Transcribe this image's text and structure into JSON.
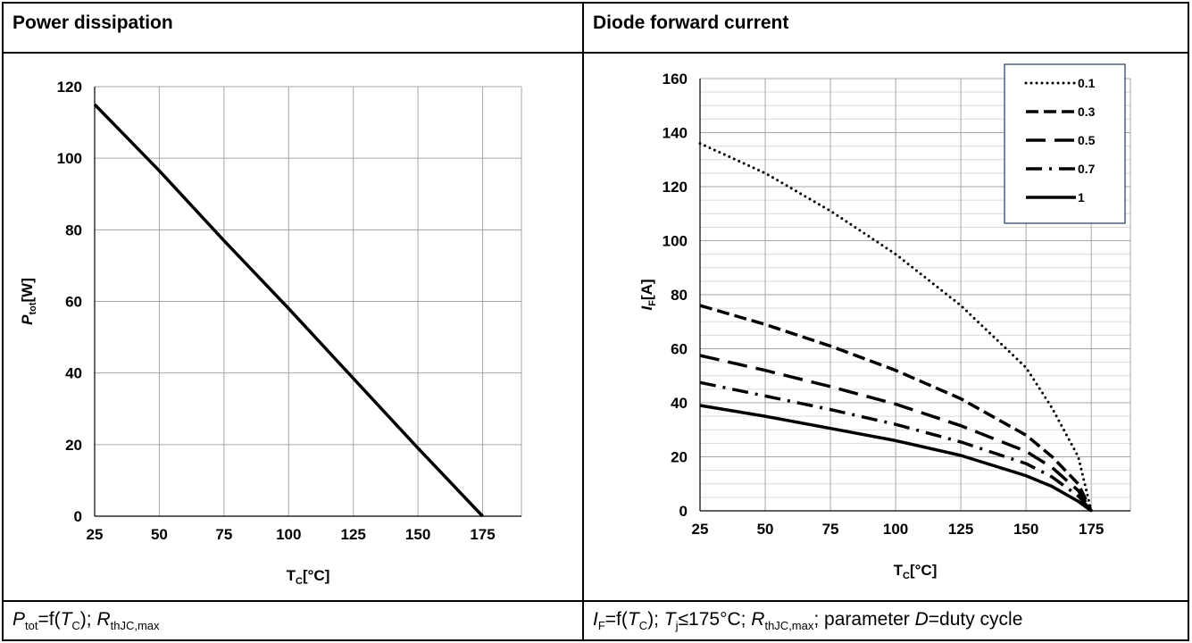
{
  "panels": [
    {
      "title": "Power dissipation",
      "caption": "P_tot=f(T_C); R_thJC,max"
    },
    {
      "title": "Diode forward current",
      "caption": "I_F=f(T_C); T_j≤175°C; R_thJC,max; parameter D=duty cycle"
    }
  ],
  "chart_data": [
    {
      "type": "line",
      "title": "Power dissipation",
      "xlabel": "T_C[°C]",
      "ylabel": "P_tot[W]",
      "xlim": [
        25,
        190
      ],
      "ylim": [
        0,
        120
      ],
      "xticks": [
        25,
        50,
        75,
        100,
        125,
        150,
        175
      ],
      "yticks": [
        0,
        20,
        40,
        60,
        80,
        100,
        120
      ],
      "grid": true,
      "series": [
        {
          "x": [
            25,
            50,
            75,
            100,
            125,
            150,
            175
          ],
          "y": [
            115,
            96.5,
            77,
            58,
            38.5,
            19,
            0
          ]
        }
      ]
    },
    {
      "type": "line",
      "title": "Diode forward current",
      "xlabel": "T_C[°C]",
      "ylabel": "I_F[A]",
      "xlim": [
        25,
        190
      ],
      "ylim": [
        0,
        160
      ],
      "xticks": [
        25,
        50,
        75,
        100,
        125,
        150,
        175
      ],
      "yticks": [
        0,
        20,
        40,
        60,
        80,
        100,
        120,
        140,
        160
      ],
      "grid": true,
      "legend": "top-right",
      "series": [
        {
          "name": "0.1",
          "x": [
            25,
            50,
            75,
            100,
            125,
            150,
            160,
            170,
            175
          ],
          "y": [
            136,
            125,
            111,
            95,
            76,
            53,
            38,
            20,
            0
          ]
        },
        {
          "name": "0.3",
          "x": [
            25,
            50,
            75,
            100,
            125,
            150,
            160,
            170,
            175
          ],
          "y": [
            76,
            69,
            61,
            52,
            41.5,
            28,
            20,
            10,
            0
          ]
        },
        {
          "name": "0.5",
          "x": [
            25,
            50,
            75,
            100,
            125,
            150,
            160,
            170,
            175
          ],
          "y": [
            57.5,
            52,
            46,
            39.5,
            31.5,
            22,
            16,
            7.5,
            0
          ]
        },
        {
          "name": "0.7",
          "x": [
            25,
            50,
            75,
            100,
            125,
            150,
            160,
            170,
            175
          ],
          "y": [
            47.5,
            42.5,
            37.5,
            32,
            25.5,
            17.5,
            12.5,
            5.5,
            0
          ]
        },
        {
          "name": "1",
          "x": [
            25,
            50,
            75,
            100,
            125,
            150,
            160,
            170,
            175
          ],
          "y": [
            39,
            35,
            30.5,
            26,
            20.5,
            13,
            9,
            3.5,
            0
          ]
        }
      ]
    }
  ]
}
